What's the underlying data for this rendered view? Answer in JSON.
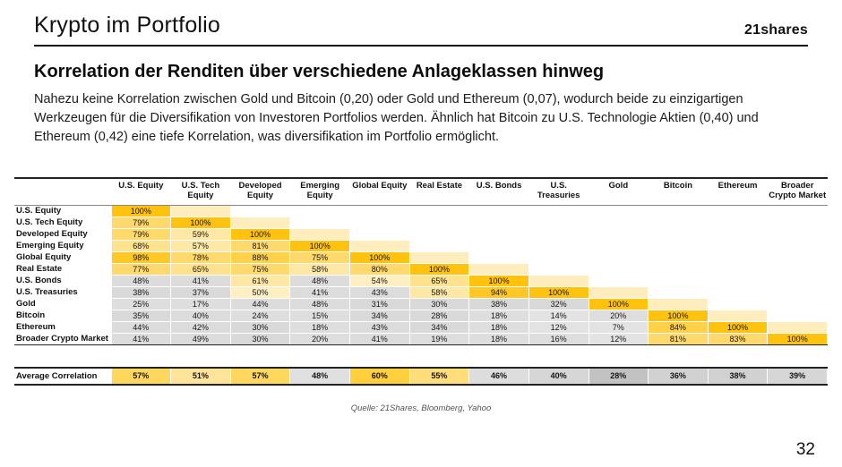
{
  "page": {
    "title": "Krypto im Portfolio",
    "brand": "21shares",
    "page_number": "32"
  },
  "content": {
    "heading": "Korrelation der Renditen über verschiedene Anlageklassen hinweg",
    "body": "Nahezu keine Korrelation zwischen Gold und Bitcoin (0,20) oder Gold und Ethereum (0,07), wodurch beide zu einzigartigen Werkzeugen für die Diversifikation von Investoren Portfolios werden. Ähnlich hat Bitcoin zu U.S. Technologie Aktien (0,40) und Ethereum (0,42) eine tiefe Korrelation, was diversifikation im Portfolio ermöglicht.",
    "source": "Quelle: 21Shares, Bloomberg, Yahoo"
  },
  "chart_data": {
    "type": "heatmap",
    "title": "Korrelation der Renditen über verschiedene Anlageklassen hinweg",
    "unit": "%",
    "layout": {
      "matrix": "lower-triangle",
      "value_suffix": "%",
      "legend": "none"
    },
    "columns": [
      {
        "label": "U.S. Equity",
        "lines": [
          "U.S. Equity"
        ]
      },
      {
        "label": "U.S. Tech Equity",
        "lines": [
          "U.S. Tech",
          "Equity"
        ]
      },
      {
        "label": "Developed Equity",
        "lines": [
          "Developed",
          "Equity"
        ]
      },
      {
        "label": "Emerging Equity",
        "lines": [
          "Emerging",
          "Equity"
        ]
      },
      {
        "label": "Global Equity",
        "lines": [
          "Global Equity"
        ]
      },
      {
        "label": "Real Estate",
        "lines": [
          "Real Estate"
        ]
      },
      {
        "label": "U.S. Bonds",
        "lines": [
          "U.S. Bonds"
        ]
      },
      {
        "label": "U.S. Treasuries",
        "lines": [
          "U.S.",
          "Treasuries"
        ]
      },
      {
        "label": "Gold",
        "lines": [
          "Gold"
        ]
      },
      {
        "label": "Bitcoin",
        "lines": [
          "Bitcoin"
        ]
      },
      {
        "label": "Ethereum",
        "lines": [
          "Ethereum"
        ]
      },
      {
        "label": "Broader Crypto Market",
        "lines": [
          "Broader",
          "Crypto Market"
        ]
      }
    ],
    "rows": [
      {
        "label": "U.S. Equity",
        "values": [
          100
        ]
      },
      {
        "label": "U.S. Tech Equity",
        "values": [
          79,
          100
        ]
      },
      {
        "label": "Developed Equity",
        "values": [
          79,
          59,
          100
        ]
      },
      {
        "label": "Emerging Equity",
        "values": [
          68,
          57,
          81,
          100
        ]
      },
      {
        "label": "Global Equity",
        "values": [
          98,
          78,
          88,
          75,
          100
        ]
      },
      {
        "label": "Real Estate",
        "values": [
          77,
          65,
          75,
          58,
          80,
          100
        ]
      },
      {
        "label": "U.S. Bonds",
        "values": [
          48,
          41,
          61,
          48,
          54,
          65,
          100
        ]
      },
      {
        "label": "U.S. Treasuries",
        "values": [
          38,
          37,
          50,
          41,
          43,
          58,
          94,
          100
        ]
      },
      {
        "label": "Gold",
        "values": [
          25,
          17,
          44,
          48,
          31,
          30,
          38,
          32,
          100
        ]
      },
      {
        "label": "Bitcoin",
        "values": [
          35,
          40,
          24,
          15,
          34,
          28,
          18,
          14,
          20,
          100
        ]
      },
      {
        "label": "Ethereum",
        "values": [
          44,
          42,
          30,
          18,
          43,
          34,
          18,
          12,
          7,
          84,
          100
        ]
      },
      {
        "label": "Broader Crypto Market",
        "values": [
          41,
          49,
          30,
          20,
          41,
          19,
          18,
          16,
          12,
          81,
          83,
          100
        ]
      }
    ],
    "average_row": {
      "label": "Average Correlation",
      "values": [
        57,
        51,
        57,
        48,
        60,
        55,
        46,
        40,
        28,
        36,
        38,
        39
      ]
    },
    "colors": {
      "accent_gold": "#ffc20e",
      "step_tint": "#ffedbd",
      "matrix_ramp": {
        "100": "#ffc20e",
        "94": "#ffc826",
        "84": "#ffd04a",
        "75": "#ffd96b",
        "65": "#ffe28e",
        "57": "#ffe8a6",
        "50": "#ffefc2",
        "40": "#dcdcdc",
        "28": "#d9d9d9",
        "15": "#dedede",
        "0": "#e3e3e3"
      },
      "average_ramp": {
        "60": "#ffcf3e",
        "57": "#ffd65e",
        "55": "#ffdd7a",
        "51": "#ffe49a",
        "48": "#e0e0e0",
        "44": "#dddddd",
        "39": "#d6d6d6",
        "35": "#d1d1d1",
        "0": "#c2c2c2"
      }
    }
  }
}
